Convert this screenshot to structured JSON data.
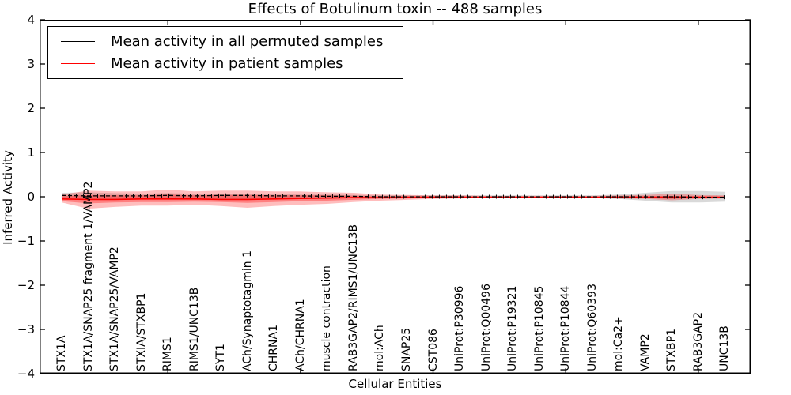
{
  "title": "Effects of Botulinum toxin -- 488 samples",
  "legend": {
    "items": [
      {
        "label": "Mean activity in all permuted samples",
        "color": "#000000"
      },
      {
        "label": "Mean activity in patient samples",
        "color": "#ff0000"
      }
    ]
  },
  "chart_data": {
    "type": "line",
    "title": "Effects of Botulinum toxin -- 488 samples",
    "xlabel": "Cellular Entities",
    "ylabel": "Inferred Activity",
    "ylim": [
      -4,
      4
    ],
    "ytick_values": [
      -4,
      -3,
      -2,
      -1,
      0,
      1,
      2,
      3,
      4
    ],
    "ytick_labels": [
      "−4",
      "−3",
      "−2",
      "−1",
      "0",
      "1",
      "2",
      "3",
      "4"
    ],
    "xlim": [
      0.165,
      26.97
    ],
    "xtick_values": [
      5,
      10,
      15,
      20,
      25
    ],
    "grid": false,
    "legend_position": "upper left",
    "categories": [
      "STX1A",
      "STX1A/SNAP25 fragment 1/VAMP2",
      "STX1A/SNAP25/VAMP2",
      "STXIA/STXBP1",
      "RIMS1",
      "RIMS1/UNC13B",
      "SYT1",
      "ACh/Synaptotagmin 1",
      "CHRNA1",
      "ACh/CHRNA1",
      "muscle contraction",
      "RAB3GAP2/RIMS1/UNC13B",
      "mol:ACh",
      "SNAP25",
      "CST086",
      "UniProt:P30996",
      "UniProt:Q00496",
      "UniProt:P19321",
      "UniProt:P10845",
      "UniProt:P10844",
      "UniProt:Q60393",
      "mol:Ca2+",
      "VAMP2",
      "STXBP1",
      "RAB3GAP2",
      "UNC13B"
    ],
    "x": [
      1,
      2,
      3,
      4,
      5,
      6,
      7,
      8,
      9,
      10,
      11,
      12,
      13,
      14,
      15,
      16,
      17,
      18,
      19,
      20,
      21,
      22,
      23,
      24,
      25,
      26
    ],
    "series": [
      {
        "name": "Mean activity in all permuted samples",
        "color": "#000000",
        "style": "dashed-with-tick-markers",
        "values": [
          0.03,
          0.02,
          0.02,
          0.02,
          0.03,
          0.02,
          0.03,
          0.03,
          0.02,
          0.02,
          0.01,
          0.01,
          0.0,
          0.0,
          0.0,
          0.0,
          0.0,
          0.0,
          0.0,
          0.0,
          0.0,
          0.0,
          0.0,
          0.0,
          -0.01,
          -0.01
        ]
      },
      {
        "name": "Mean activity in patient samples",
        "color": "#ff0000",
        "style": "solid",
        "values": [
          -0.05,
          -0.06,
          -0.06,
          -0.05,
          -0.05,
          -0.05,
          -0.06,
          -0.06,
          -0.05,
          -0.04,
          -0.03,
          -0.02,
          -0.02,
          -0.01,
          -0.01,
          -0.01,
          -0.01,
          -0.01,
          -0.01,
          -0.01,
          -0.01,
          -0.01,
          -0.01,
          -0.01,
          -0.01,
          -0.01
        ]
      }
    ],
    "bands": [
      {
        "name": "permuted-samples-spread",
        "color": "#808080",
        "opacity": 0.3,
        "top": [
          0.09,
          0.1,
          0.08,
          0.07,
          0.08,
          0.07,
          0.07,
          0.07,
          0.06,
          0.05,
          0.05,
          0.04,
          0.03,
          0.03,
          0.03,
          0.03,
          0.03,
          0.03,
          0.03,
          0.03,
          0.03,
          0.05,
          0.09,
          0.13,
          0.13,
          0.11
        ],
        "bottom": [
          -0.06,
          -0.07,
          -0.06,
          -0.05,
          -0.05,
          -0.05,
          -0.05,
          -0.05,
          -0.04,
          -0.04,
          -0.03,
          -0.03,
          -0.03,
          -0.03,
          -0.03,
          -0.03,
          -0.03,
          -0.03,
          -0.03,
          -0.03,
          -0.03,
          -0.05,
          -0.09,
          -0.13,
          -0.13,
          -0.11
        ]
      },
      {
        "name": "patient-samples-spread-outer",
        "color": "#ff0000",
        "opacity": 0.26,
        "top": [
          0.05,
          0.14,
          0.12,
          0.12,
          0.16,
          0.12,
          0.14,
          0.14,
          0.12,
          0.12,
          0.1,
          0.09,
          0.05,
          0.04,
          0.03,
          0.03,
          0.02,
          0.02,
          0.02,
          0.02,
          0.02,
          0.03,
          0.04,
          0.07,
          0.04,
          0.03
        ],
        "bottom": [
          -0.13,
          -0.27,
          -0.23,
          -0.2,
          -0.2,
          -0.18,
          -0.21,
          -0.25,
          -0.21,
          -0.18,
          -0.16,
          -0.12,
          -0.09,
          -0.07,
          -0.05,
          -0.04,
          -0.03,
          -0.03,
          -0.03,
          -0.03,
          -0.03,
          -0.04,
          -0.05,
          -0.08,
          -0.05,
          -0.04
        ],
        "legend_hidden": true
      },
      {
        "name": "patient-samples-spread-inner",
        "color": "#ff0000",
        "opacity": 0.32,
        "top": [
          0.01,
          0.04,
          0.03,
          0.03,
          0.05,
          0.03,
          0.04,
          0.04,
          0.03,
          0.03,
          0.03,
          0.02,
          0.01,
          0.01,
          0.01,
          0.01,
          0.0,
          0.0,
          0.0,
          0.0,
          0.0,
          0.01,
          0.01,
          0.02,
          0.01,
          0.0
        ],
        "bottom": [
          -0.1,
          -0.15,
          -0.13,
          -0.12,
          -0.12,
          -0.11,
          -0.12,
          -0.14,
          -0.12,
          -0.1,
          -0.09,
          -0.07,
          -0.05,
          -0.04,
          -0.03,
          -0.02,
          -0.02,
          -0.02,
          -0.02,
          -0.02,
          -0.02,
          -0.02,
          -0.03,
          -0.05,
          -0.03,
          -0.02
        ]
      }
    ]
  }
}
